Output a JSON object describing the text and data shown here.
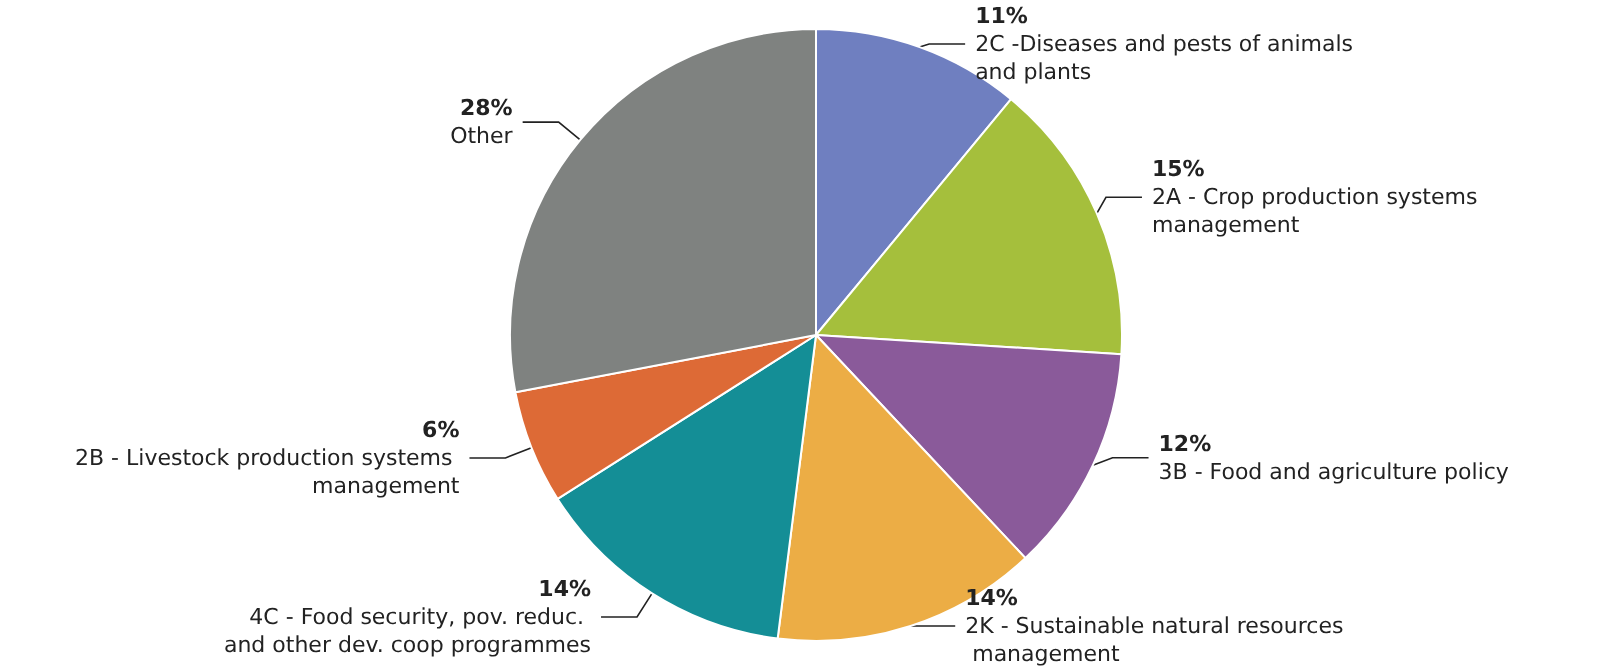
{
  "chart_data": {
    "type": "pie",
    "categories": [
      "2C -Diseases and pests of animals and plants",
      "2A - Crop production systems management",
      "3B - Food and agriculture policy",
      "2K - Sustainable natural resources management",
      "4C - Food security, pov. reduc. and other dev. coop programmes",
      "2B - Livestock production systems management",
      "Other"
    ],
    "values": [
      11,
      15,
      12,
      14,
      14,
      6,
      28
    ],
    "value_labels": [
      "11%",
      "15%",
      "12%",
      "14%",
      "14%",
      "6%",
      "28%"
    ],
    "colors": [
      "#6f7fc0",
      "#a5bf3c",
      "#8a5a9a",
      "#ecad45",
      "#148e96",
      "#dd6a36",
      "#7f8280"
    ]
  }
}
